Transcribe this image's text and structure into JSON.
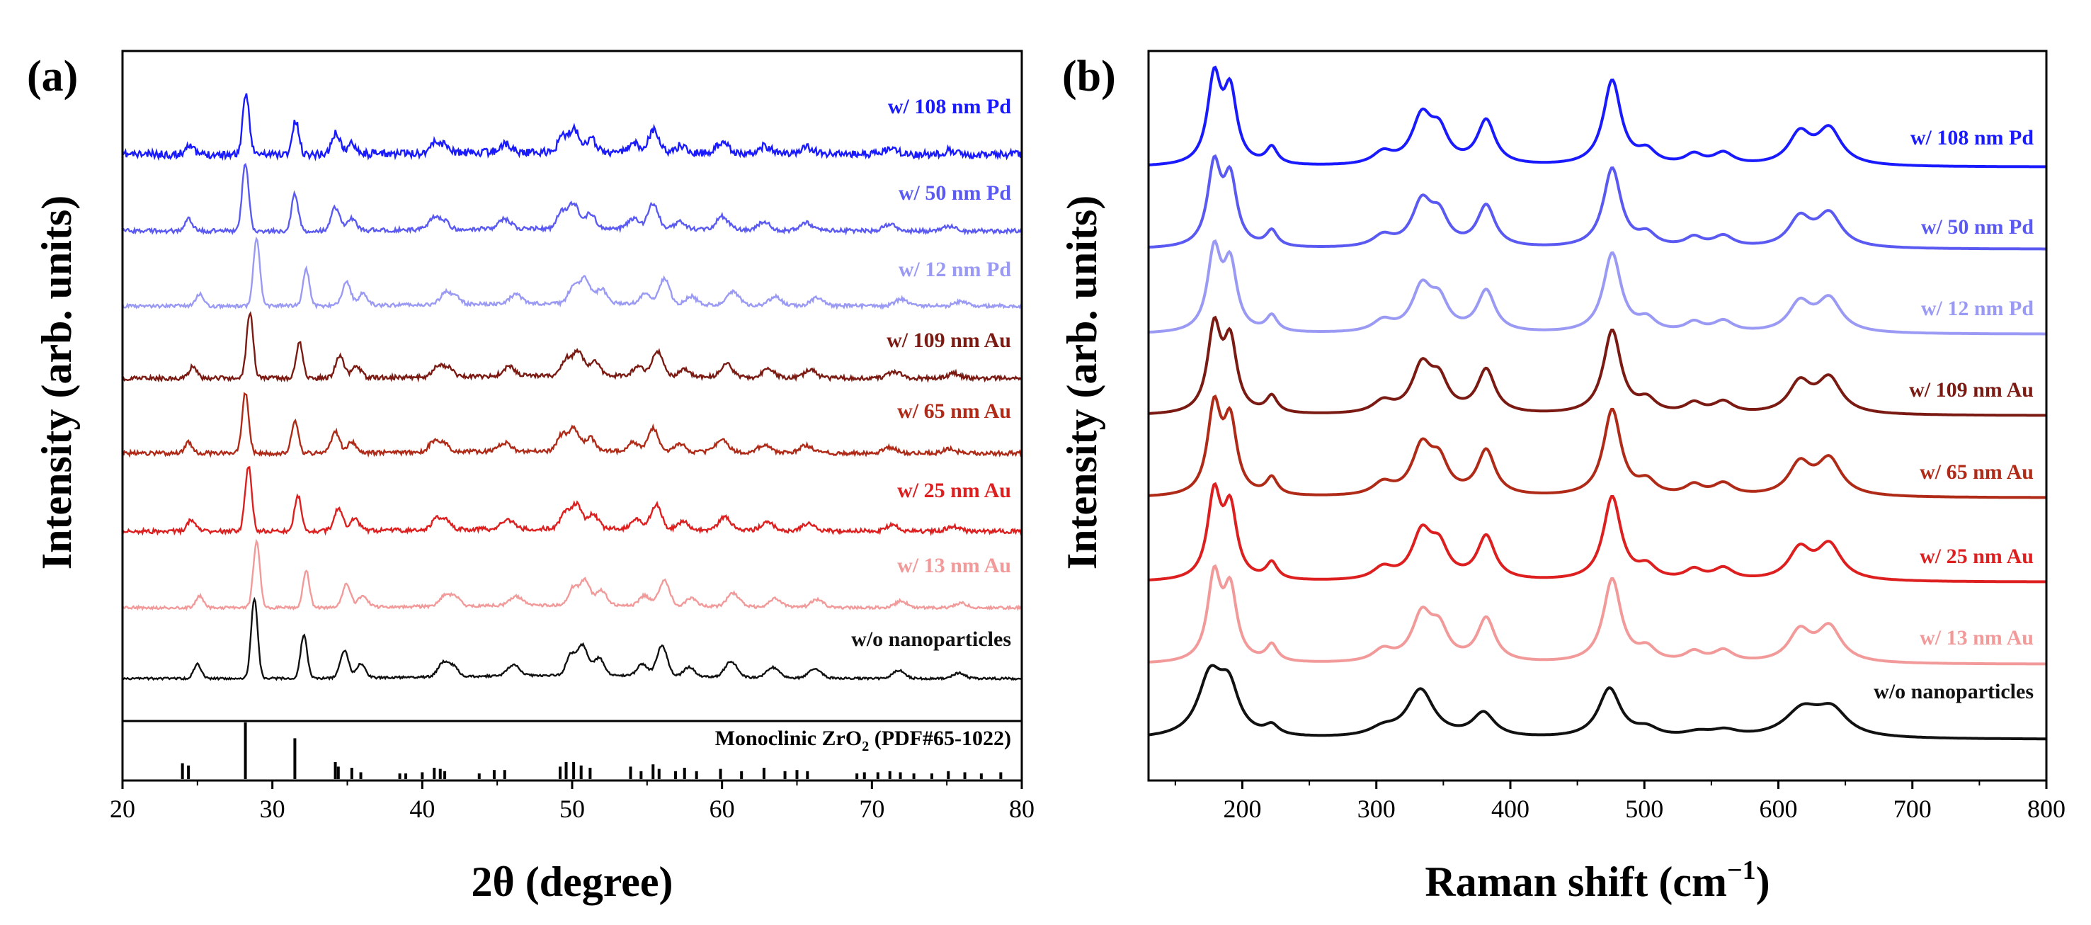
{
  "chart_data": [
    {
      "id": "a",
      "type": "line",
      "panel_label": "(a)",
      "xlabel": "2θ (degree)",
      "ylabel": "Intensity (arb. units)",
      "xlim": [
        20,
        80
      ],
      "xticks": [
        20,
        30,
        40,
        50,
        60,
        70,
        80
      ],
      "series": [
        {
          "name": "w/ 108 nm Pd",
          "color": "#1a1aff",
          "offset": 8
        },
        {
          "name": "w/ 50 nm Pd",
          "color": "#5a5af2",
          "offset": 7
        },
        {
          "name": "w/ 12 nm Pd",
          "color": "#9a9af5",
          "offset": 6
        },
        {
          "name": "w/ 109 nm Au",
          "color": "#7a1a12",
          "offset": 5
        },
        {
          "name": "w/ 65 nm Au",
          "color": "#b02a18",
          "offset": 4
        },
        {
          "name": "w/ 25 nm Au",
          "color": "#dd1f1f",
          "offset": 3
        },
        {
          "name": "w/ 13 nm Au",
          "color": "#f29a9a",
          "offset": 2
        },
        {
          "name": "w/o nanoparticles",
          "color": "#111111",
          "offset": 1
        }
      ],
      "reference": {
        "label_prefix": "Monoclinic ZrO",
        "label_sub": "2",
        "label_suffix": " (PDF#65-1022)",
        "lines": [
          {
            "x": 24.0,
            "h": 0.28
          },
          {
            "x": 24.4,
            "h": 0.24
          },
          {
            "x": 28.2,
            "h": 1.0
          },
          {
            "x": 31.5,
            "h": 0.72
          },
          {
            "x": 34.2,
            "h": 0.3
          },
          {
            "x": 34.4,
            "h": 0.22
          },
          {
            "x": 35.3,
            "h": 0.2
          },
          {
            "x": 35.9,
            "h": 0.12
          },
          {
            "x": 38.5,
            "h": 0.1
          },
          {
            "x": 38.9,
            "h": 0.1
          },
          {
            "x": 40.0,
            "h": 0.12
          },
          {
            "x": 40.8,
            "h": 0.2
          },
          {
            "x": 41.2,
            "h": 0.18
          },
          {
            "x": 41.5,
            "h": 0.14
          },
          {
            "x": 43.8,
            "h": 0.1
          },
          {
            "x": 44.8,
            "h": 0.16
          },
          {
            "x": 45.5,
            "h": 0.16
          },
          {
            "x": 49.2,
            "h": 0.22
          },
          {
            "x": 49.6,
            "h": 0.3
          },
          {
            "x": 50.1,
            "h": 0.3
          },
          {
            "x": 50.6,
            "h": 0.24
          },
          {
            "x": 51.2,
            "h": 0.2
          },
          {
            "x": 53.9,
            "h": 0.22
          },
          {
            "x": 54.6,
            "h": 0.14
          },
          {
            "x": 55.4,
            "h": 0.26
          },
          {
            "x": 55.8,
            "h": 0.18
          },
          {
            "x": 56.9,
            "h": 0.14
          },
          {
            "x": 57.5,
            "h": 0.2
          },
          {
            "x": 58.3,
            "h": 0.14
          },
          {
            "x": 59.9,
            "h": 0.18
          },
          {
            "x": 61.3,
            "h": 0.14
          },
          {
            "x": 62.8,
            "h": 0.2
          },
          {
            "x": 64.2,
            "h": 0.14
          },
          {
            "x": 65.0,
            "h": 0.16
          },
          {
            "x": 65.7,
            "h": 0.14
          },
          {
            "x": 69.0,
            "h": 0.1
          },
          {
            "x": 69.5,
            "h": 0.12
          },
          {
            "x": 70.4,
            "h": 0.12
          },
          {
            "x": 71.2,
            "h": 0.14
          },
          {
            "x": 71.9,
            "h": 0.12
          },
          {
            "x": 72.8,
            "h": 0.1
          },
          {
            "x": 74.0,
            "h": 0.1
          },
          {
            "x": 75.1,
            "h": 0.14
          },
          {
            "x": 76.2,
            "h": 0.12
          },
          {
            "x": 77.3,
            "h": 0.1
          },
          {
            "x": 78.6,
            "h": 0.12
          }
        ]
      }
    },
    {
      "id": "b",
      "type": "line",
      "panel_label": "(b)",
      "xlabel": "Raman shift (cm",
      "xlabel_sup": "−1",
      "xlabel_end": ")",
      "ylabel": "Intensity (arb. units)",
      "xlim": [
        130,
        800
      ],
      "xticks": [
        200,
        300,
        400,
        500,
        600,
        700,
        800
      ],
      "series": [
        {
          "name": "w/ 108 nm Pd",
          "color": "#1a1aff",
          "offset": 8
        },
        {
          "name": "w/ 50 nm Pd",
          "color": "#5a5af2",
          "offset": 7
        },
        {
          "name": "w/ 12 nm Pd",
          "color": "#9a9af5",
          "offset": 6
        },
        {
          "name": "w/ 109 nm Au",
          "color": "#7a1a12",
          "offset": 5
        },
        {
          "name": "w/ 65 nm Au",
          "color": "#b02a18",
          "offset": 4
        },
        {
          "name": "w/ 25 nm Au",
          "color": "#dd1f1f",
          "offset": 3
        },
        {
          "name": "w/ 13 nm Au",
          "color": "#f29a9a",
          "offset": 2
        },
        {
          "name": "w/o nanoparticles",
          "color": "#111111",
          "offset": 1
        }
      ]
    }
  ]
}
